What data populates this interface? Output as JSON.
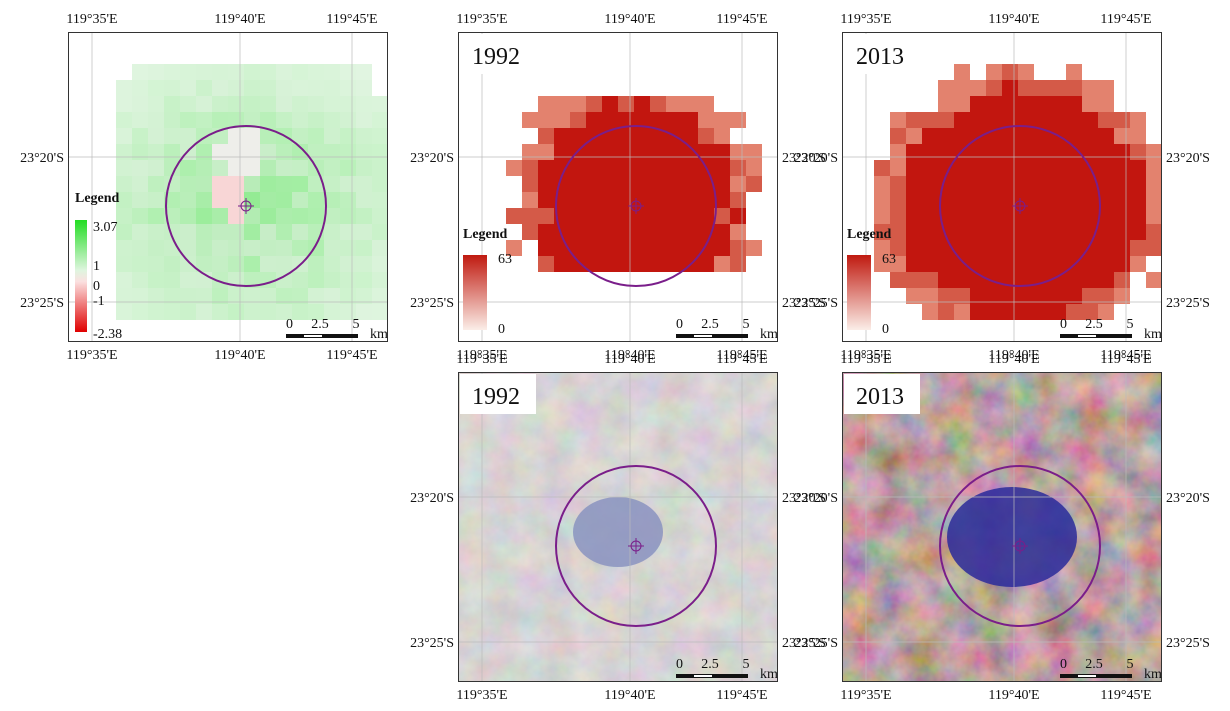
{
  "coordinates": {
    "longitude": [
      "119°35'E",
      "119°40'E",
      "119°45'E"
    ],
    "latitude": [
      "23°20'S",
      "23°25'S"
    ]
  },
  "scale_bar": {
    "ticks": [
      0,
      2.5,
      5
    ],
    "unit": "km"
  },
  "panels": [
    {
      "legend": {
        "title": "Legend",
        "labels": [
          3.07,
          1,
          0,
          -1,
          -2.38
        ]
      }
    },
    {
      "title": "1992",
      "legend": {
        "title": "Legend",
        "labels": [
          63,
          0
        ]
      }
    },
    {
      "title": "2013",
      "legend": {
        "title": "Legend",
        "labels": [
          63,
          0
        ]
      }
    },
    {
      "title": "1992"
    },
    {
      "title": "2013"
    }
  ]
}
